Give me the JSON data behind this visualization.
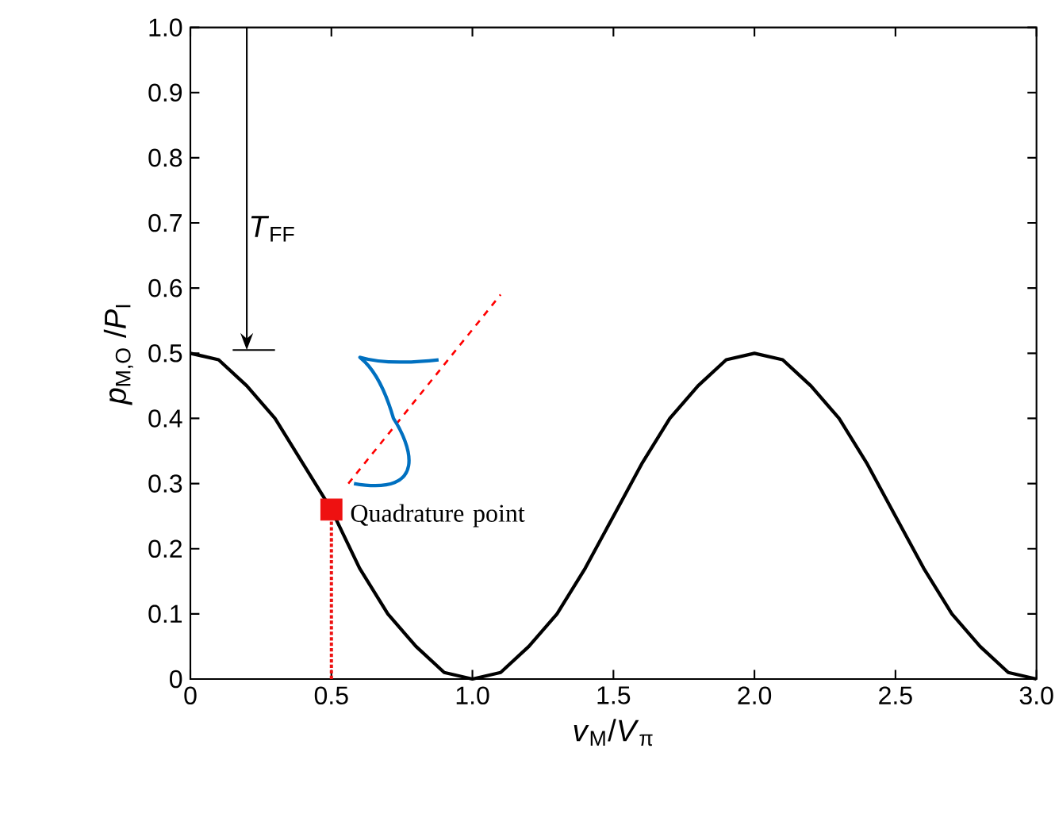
{
  "chart_data": {
    "type": "line",
    "xlabel": "*v*$_{M}$/*V*$_{π}$",
    "ylabel": "*p*$_{M,O}$ /*P*$_{I}$",
    "xlim": [
      0,
      3
    ],
    "ylim": [
      0,
      1
    ],
    "xticks": [
      0,
      0.5,
      {
        "value": 1,
        "label": "1.0"
      },
      1.5,
      {
        "value": 2,
        "label": "2.0"
      },
      2.5,
      {
        "value": 3,
        "label": "3.0"
      }
    ],
    "yticks": [
      0,
      0.1,
      0.2,
      0.3,
      0.4,
      0.5,
      0.6,
      0.7,
      0.8,
      0.9,
      {
        "value": 1,
        "label": "1.0"
      }
    ],
    "grid": false,
    "series": [
      {
        "color": "#000000",
        "line_style": "solid",
        "x": [
          0,
          0.1,
          0.2,
          0.3,
          0.4,
          0.5,
          0.6,
          0.7,
          0.8,
          0.9,
          1.0,
          1.1,
          1.2,
          1.3,
          1.4,
          1.5,
          1.6,
          1.7,
          1.8,
          1.9,
          2.0,
          2.1,
          2.2,
          2.3,
          2.4,
          2.5,
          2.6,
          2.7,
          2.8,
          2.9,
          3.0
        ],
        "values": [
          0.5,
          0.49,
          0.45,
          0.4,
          0.33,
          0.26,
          0.17,
          0.1,
          0.05,
          0.01,
          0,
          0.01,
          0.05,
          0.1,
          0.17,
          0.25,
          0.33,
          0.4,
          0.45,
          0.49,
          0.5,
          0.49,
          0.45,
          0.4,
          0.33,
          0.25,
          0.17,
          0.1,
          0.05,
          0.01,
          0
        ]
      },
      {
        "type": "line",
        "color": "#ee1111",
        "line_style": "dotted",
        "x": [
          0.5,
          0.5
        ],
        "values": [
          0,
          0.26
        ]
      },
      {
        "type": "scatter",
        "color": "#ee1111",
        "marker": "square",
        "x": [
          0.5
        ],
        "values": [
          0.26
        ]
      }
    ],
    "annotations": [
      "*T*$_{FF}$",
      {
        "text": "Quadrature point",
        "x": 0.5,
        "y": 0.26
      }
    ]
  }
}
